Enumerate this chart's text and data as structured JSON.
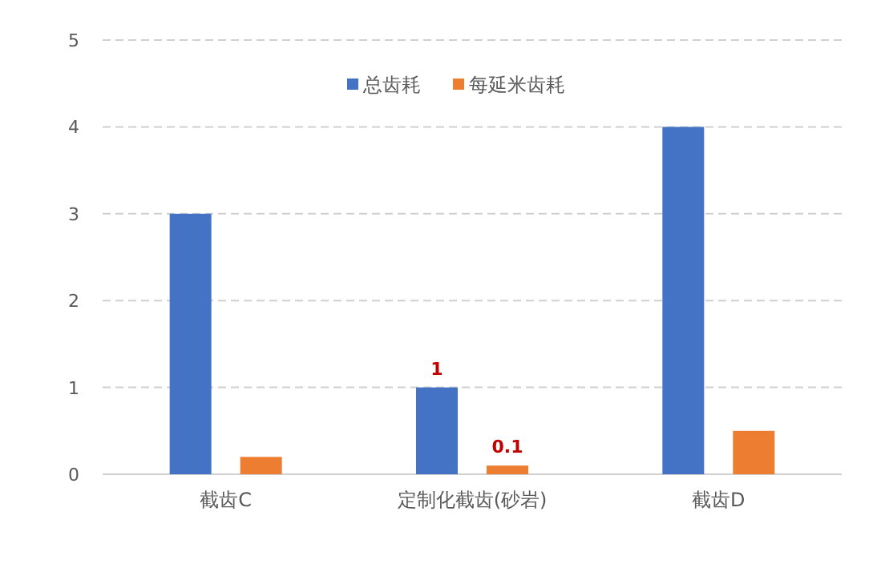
{
  "chart_data": {
    "type": "bar",
    "categories": [
      "截齿C",
      "定制化截齿(砂岩)",
      "截齿D"
    ],
    "series": [
      {
        "name": "总齿耗",
        "color": "#4472c4",
        "values": [
          3,
          1,
          4
        ],
        "value_labels": [
          null,
          "1",
          null
        ]
      },
      {
        "name": "每延米齿耗",
        "color": "#ed7d31",
        "values": [
          0.2,
          0.1,
          0.5
        ],
        "value_labels": [
          null,
          "0.1",
          null
        ]
      }
    ],
    "ylim": [
      0,
      5
    ],
    "yticks": [
      0,
      1,
      2,
      3,
      4,
      5
    ],
    "grid": "y",
    "legend": "top"
  }
}
